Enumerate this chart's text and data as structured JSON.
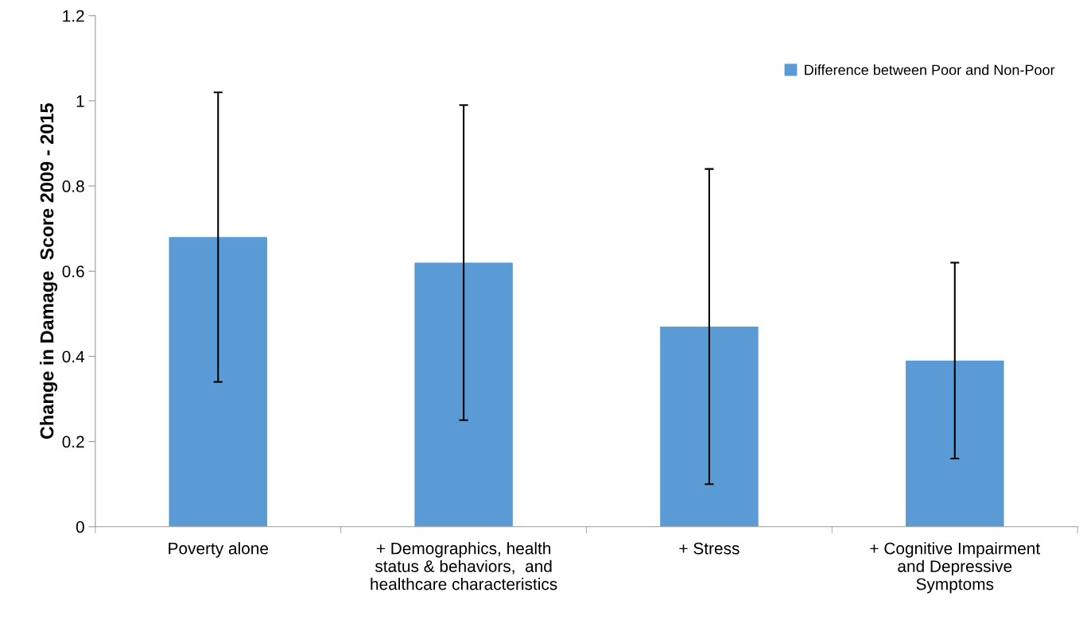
{
  "chart_data": {
    "type": "bar",
    "ylabel": "Change in Damage  Score 2009 - 2015",
    "categories": [
      "Poverty alone",
      "+ Demographics, health\nstatus & behaviors,  and\nhealthcare characteristics",
      "+ Stress",
      "+ Cognitive Impairment\nand Depressive\nSymptoms"
    ],
    "series": [
      {
        "name": "Difference between Poor and Non-Poor",
        "color": "#5b9bd5",
        "values": [
          0.68,
          0.62,
          0.47,
          0.39
        ],
        "errors": [
          0.34,
          0.37,
          0.37,
          0.23
        ]
      }
    ],
    "ylim": [
      0,
      1.2
    ],
    "yticks": [
      0,
      0.2,
      0.4,
      0.6,
      0.8,
      1,
      1.2
    ],
    "grid": false,
    "legend": "top right"
  }
}
